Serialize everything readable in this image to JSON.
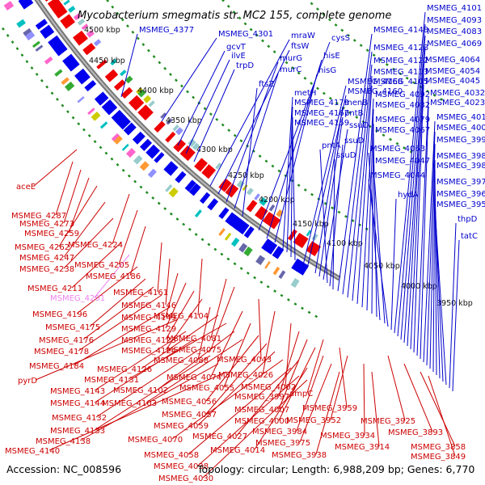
{
  "title": "Mycobacterium smegmatis str. MC2 155, complete genome",
  "footer": {
    "accession": "Accession: NC_008596",
    "topology": "Topology: circular; Length: 6,988,209 bp; Genes: 6,770"
  },
  "colors": {
    "plus_strand": "#0000ee",
    "minus_strand": "#ee0000",
    "backbone": "#777777",
    "dotted_ring": "#228b22",
    "label_plus": "#0000cc",
    "label_minus": "#cc0000",
    "label_highlight": "#ee82ee"
  },
  "ticks": [
    "4500 kbp",
    "4450 kbp",
    "4400 kbp",
    "4350 kbp",
    "4300 kbp",
    "4250 kbp",
    "4200 kbp",
    "4150 kbp",
    "4100 kbp",
    "4050 kbp",
    "4000 kbp",
    "3950 kbp"
  ],
  "labels_plus": [
    "MSMEG_4377",
    "MSMEG_4301",
    "gcvT",
    "ilvE",
    "trpD",
    "mraW",
    "ftsW",
    "murG",
    "murC",
    "ftsZ",
    "cysS",
    "hisE",
    "hisG",
    "metH",
    "MSMEG_4179",
    "MSMEG_4167",
    "MSMEG_4159",
    "MSMEG_4168",
    "MSMEG_4160",
    "menB",
    "pntB",
    "ssuD",
    "pntA",
    "ssuD",
    "ssuD",
    "MSMEG_4148",
    "MSMEG_4128",
    "MSMEG_4122",
    "MSMEG_4113",
    "MSMEG_4105",
    "MSMEG_4092",
    "MSMEG_4082",
    "MSMEG_4079",
    "MSMEG_4067",
    "MSMEG_4063",
    "MSMEG_4047",
    "MSMEG_4044",
    "hydA",
    "MSMEG_4101",
    "MSMEG_4093",
    "MSMEG_4083",
    "MSMEG_4069",
    "MSMEG_4064",
    "MSMEG_4054",
    "MSMEG_4045",
    "MSMEG_4032",
    "MSMEG_4023",
    "MSMEG_4015",
    "MSMEG_4006",
    "MSMEG_3995",
    "MSMEG_3988",
    "MSMEG_3981",
    "MSMEG_3976",
    "MSMEG_3967",
    "MSMEG_3955",
    "thpD",
    "tatC"
  ],
  "labels_minus": [
    "aceE",
    "MSMEG_4287",
    "MSMEG_4273",
    "MSMEG_4259",
    "MSMEG_4262",
    "MSMEG_4224",
    "MSMEG_4247",
    "MSMEG_4205",
    "MSMEG_4238",
    "MSMEG_4186",
    "MSMEG_4211",
    "MSMEG_4161",
    "MSMEG_4201",
    "MSMEG_4146",
    "MSMEG_4196",
    "MSMEG_4149",
    "MSMEG_4104",
    "MSMEG_4175",
    "MSMEG_4129",
    "MSMEG_4176",
    "MSMEG_4123",
    "MSMEG_4081",
    "MSMEG_4178",
    "MSMEG_4124",
    "MSMEG_4075",
    "MSMEG_4088",
    "MSMEG_4043",
    "MSMEG_4184",
    "MSMEG_4126",
    "MSMEG_4074",
    "MSMEG_4026",
    "pyrD",
    "MSMEG_4131",
    "MSMEG_4055",
    "MSMEG_4002",
    "MSMEG_4143",
    "MSMEG_4102",
    "MSMEG_3997",
    "MSMEG_4144",
    "MSMEG_4103",
    "MSMEG_4056",
    "MSMEG_4007",
    "ampC",
    "MSMEG_4132",
    "MSMEG_4057",
    "MSMEG_4000",
    "MSMEG_3959",
    "MSMEG_4133",
    "MSMEG_4059",
    "MSMEG_3984",
    "MSMEG_3952",
    "MSMEG_3925",
    "MSMEG_4138",
    "MSMEG_4070",
    "MSMEG_4027",
    "MSMEG_3975",
    "MSMEG_3934",
    "MSMEG_3893",
    "MSMEG_4140",
    "MSMEG_4058",
    "MSMEG_4014",
    "MSMEG_3938",
    "MSMEG_3914",
    "MSMEG_3858",
    "MSMEG_4038",
    "MSMEG_3849",
    "MSMEG_4030"
  ],
  "highlighted_label": "MSMEG_4201"
}
